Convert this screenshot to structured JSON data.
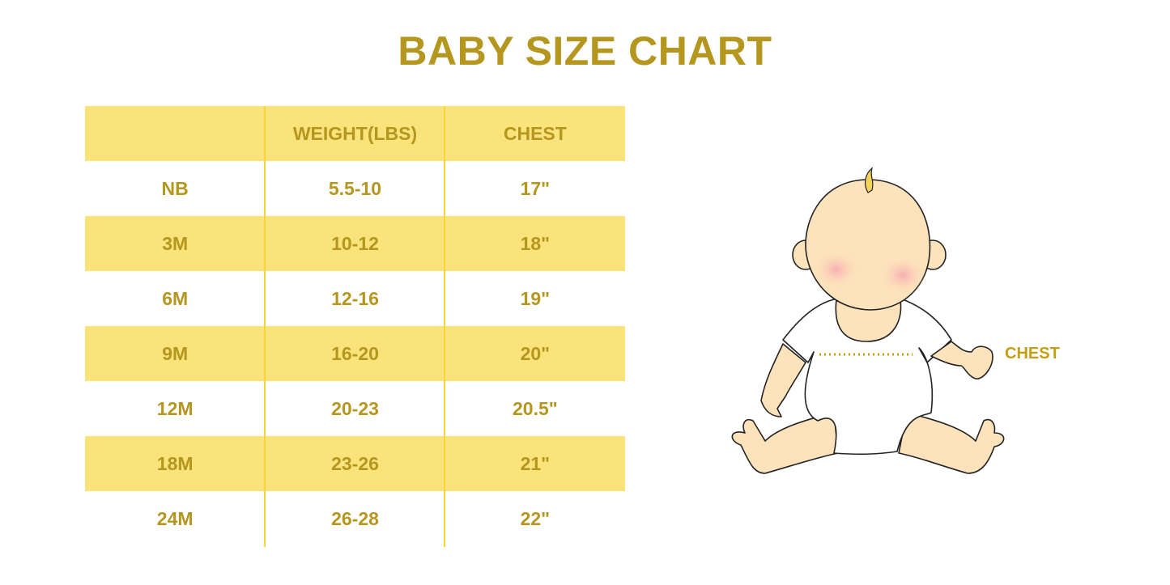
{
  "title": "BABY SIZE CHART",
  "table": {
    "headers": [
      "",
      "WEIGHT(LBS)",
      "CHEST"
    ],
    "rows": [
      [
        "NB",
        "5.5-10",
        "17\""
      ],
      [
        "3M",
        "10-12",
        "18\""
      ],
      [
        "6M",
        "12-16",
        "19\""
      ],
      [
        "9M",
        "16-20",
        "20\""
      ],
      [
        "12M",
        "20-23",
        "20.5\""
      ],
      [
        "18M",
        "23-26",
        "21\""
      ],
      [
        "24M",
        "26-28",
        "22\""
      ]
    ]
  },
  "illustration": {
    "chest_label": "CHEST"
  },
  "colors": {
    "text": "#B5961E",
    "band": "#FAE37A",
    "divider": "#F7D437",
    "skin": "#FCE3BC"
  }
}
